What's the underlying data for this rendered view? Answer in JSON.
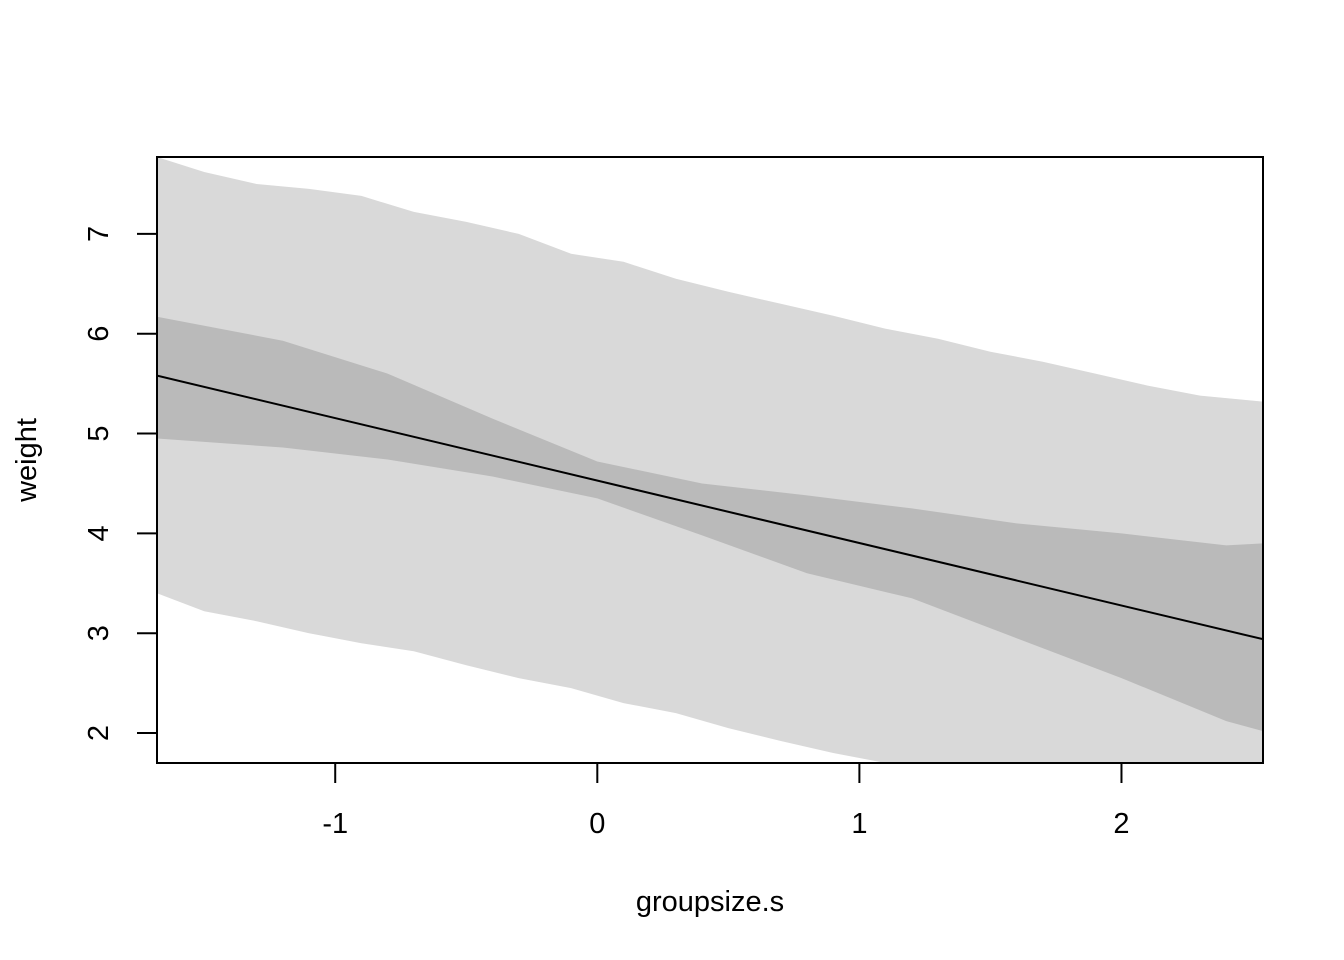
{
  "chart_data": {
    "type": "line",
    "title": "",
    "xlabel": "groupsize.s",
    "ylabel": "weight",
    "xlim": [
      -1.68,
      2.54
    ],
    "ylim": [
      1.7,
      7.77
    ],
    "xticks": [
      -1,
      0,
      1,
      2
    ],
    "yticks": [
      2,
      3,
      4,
      5,
      6,
      7
    ],
    "grid": false,
    "colors": {
      "prediction_band": "#d9d9d9",
      "mean_band": "#bababa",
      "mean_line": "#000000"
    },
    "mean_line": {
      "x": [
        -1.68,
        2.54
      ],
      "y": [
        5.58,
        2.94
      ]
    },
    "mean_interval": {
      "x": [
        -1.68,
        -1.2,
        -0.8,
        -0.4,
        0.0,
        0.4,
        0.8,
        1.2,
        1.6,
        2.0,
        2.4,
        2.54
      ],
      "upper": [
        6.17,
        5.93,
        5.6,
        5.15,
        4.72,
        4.5,
        4.38,
        4.25,
        4.1,
        4.0,
        3.88,
        3.9
      ],
      "lower": [
        4.95,
        4.86,
        4.74,
        4.57,
        4.35,
        3.98,
        3.6,
        3.35,
        2.95,
        2.55,
        2.12,
        2.02
      ]
    },
    "prediction_interval": {
      "x": [
        -1.68,
        -1.5,
        -1.3,
        -1.1,
        -0.9,
        -0.7,
        -0.5,
        -0.3,
        -0.1,
        0.1,
        0.3,
        0.5,
        0.7,
        0.9,
        1.1,
        1.3,
        1.5,
        1.7,
        1.9,
        2.1,
        2.3,
        2.54
      ],
      "upper": [
        7.77,
        7.62,
        7.5,
        7.45,
        7.38,
        7.22,
        7.12,
        7.0,
        6.8,
        6.72,
        6.55,
        6.42,
        6.3,
        6.18,
        6.05,
        5.95,
        5.82,
        5.72,
        5.6,
        5.48,
        5.38,
        5.32
      ],
      "lower": [
        3.4,
        3.22,
        3.12,
        3.0,
        2.9,
        2.82,
        2.68,
        2.55,
        2.45,
        2.3,
        2.2,
        2.05,
        1.92,
        1.8,
        1.7,
        1.62,
        1.55,
        1.48,
        1.4,
        1.32,
        1.25,
        1.2
      ]
    }
  }
}
